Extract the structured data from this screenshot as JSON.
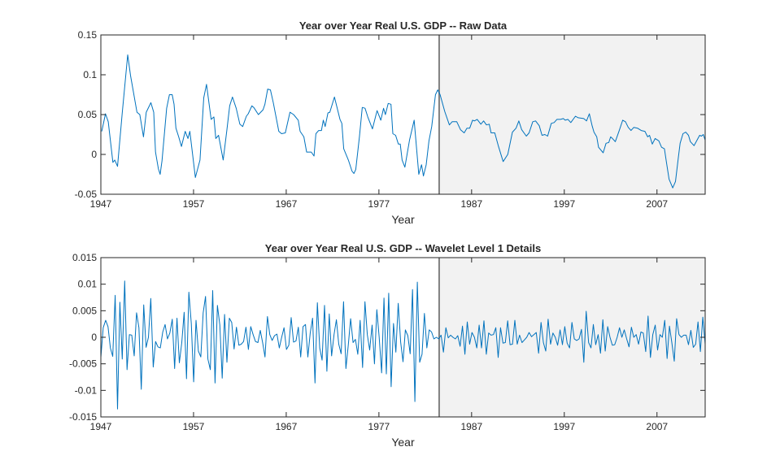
{
  "chart_data": [
    {
      "type": "line",
      "title": "Year over Year Real U.S. GDP -- Raw Data",
      "xlabel": "Year",
      "ylabel": "",
      "xlim": [
        1947,
        2012.2
      ],
      "ylim": [
        -0.05,
        0.15
      ],
      "xticks": [
        1947,
        1957,
        1967,
        1977,
        1987,
        1997,
        2007
      ],
      "xtick_labels": [
        "1947",
        "1957",
        "1967",
        "1977",
        "1987",
        "1997",
        "2007"
      ],
      "yticks": [
        -0.05,
        0,
        0.05,
        0.1,
        0.15
      ],
      "ytick_labels": [
        "-0.05",
        "0",
        "0.05",
        "0.1",
        "0.15"
      ],
      "grid": false,
      "highlight_range": [
        1983.5,
        2012.2
      ],
      "colors": {
        "line": "#0072bd",
        "highlight_fill": "#f2f2f2",
        "highlight_edge": "#808080"
      },
      "points": [
        [
          1947.1,
          0.029
        ],
        [
          1947.5,
          0.051
        ],
        [
          1947.8,
          0.041
        ],
        [
          1948.3,
          -0.01
        ],
        [
          1948.5,
          -0.007
        ],
        [
          1948.8,
          -0.015
        ],
        [
          1949.3,
          0.051
        ],
        [
          1949.9,
          0.125
        ],
        [
          1950.2,
          0.099
        ],
        [
          1950.9,
          0.053
        ],
        [
          1951.2,
          0.05
        ],
        [
          1951.6,
          0.022
        ],
        [
          1951.9,
          0.053
        ],
        [
          1952.4,
          0.065
        ],
        [
          1952.7,
          0.053
        ],
        [
          1952.9,
          0.003
        ],
        [
          1953.2,
          -0.018
        ],
        [
          1953.4,
          -0.025
        ],
        [
          1953.6,
          -0.008
        ],
        [
          1954.1,
          0.058
        ],
        [
          1954.4,
          0.075
        ],
        [
          1954.7,
          0.075
        ],
        [
          1954.9,
          0.063
        ],
        [
          1955.1,
          0.033
        ],
        [
          1955.4,
          0.022
        ],
        [
          1955.7,
          0.01
        ],
        [
          1956.1,
          0.029
        ],
        [
          1956.4,
          0.02
        ],
        [
          1956.6,
          0.029
        ],
        [
          1957.2,
          -0.029
        ],
        [
          1957.7,
          -0.007
        ],
        [
          1958.1,
          0.071
        ],
        [
          1958.4,
          0.088
        ],
        [
          1958.9,
          0.044
        ],
        [
          1959.2,
          0.047
        ],
        [
          1959.4,
          0.02
        ],
        [
          1959.7,
          0.024
        ],
        [
          1960.2,
          -0.007
        ],
        [
          1960.6,
          0.031
        ],
        [
          1960.9,
          0.061
        ],
        [
          1961.2,
          0.072
        ],
        [
          1961.6,
          0.058
        ],
        [
          1962.0,
          0.038
        ],
        [
          1962.3,
          0.035
        ],
        [
          1962.7,
          0.048
        ],
        [
          1962.9,
          0.051
        ],
        [
          1963.3,
          0.061
        ],
        [
          1963.5,
          0.059
        ],
        [
          1964.0,
          0.05
        ],
        [
          1964.5,
          0.056
        ],
        [
          1964.7,
          0.063
        ],
        [
          1965.0,
          0.082
        ],
        [
          1965.3,
          0.081
        ],
        [
          1965.6,
          0.065
        ],
        [
          1966.2,
          0.029
        ],
        [
          1966.5,
          0.026
        ],
        [
          1966.9,
          0.027
        ],
        [
          1967.4,
          0.053
        ],
        [
          1967.8,
          0.05
        ],
        [
          1968.3,
          0.043
        ],
        [
          1968.5,
          0.029
        ],
        [
          1968.9,
          0.022
        ],
        [
          1969.2,
          0.003
        ],
        [
          1969.7,
          0.003
        ],
        [
          1970.0,
          -0.002
        ],
        [
          1970.2,
          0.026
        ],
        [
          1970.5,
          0.03
        ],
        [
          1970.8,
          0.03
        ],
        [
          1971.0,
          0.043
        ],
        [
          1971.2,
          0.035
        ],
        [
          1971.5,
          0.052
        ],
        [
          1971.7,
          0.053
        ],
        [
          1972.2,
          0.072
        ],
        [
          1972.8,
          0.044
        ],
        [
          1973.0,
          0.039
        ],
        [
          1973.2,
          0.007
        ],
        [
          1973.7,
          -0.007
        ],
        [
          1974.1,
          -0.021
        ],
        [
          1974.3,
          -0.024
        ],
        [
          1974.5,
          -0.019
        ],
        [
          1974.9,
          0.022
        ],
        [
          1975.2,
          0.059
        ],
        [
          1975.5,
          0.058
        ],
        [
          1975.8,
          0.047
        ],
        [
          1976.3,
          0.032
        ],
        [
          1976.8,
          0.055
        ],
        [
          1977.2,
          0.043
        ],
        [
          1977.5,
          0.058
        ],
        [
          1977.7,
          0.05
        ],
        [
          1978.0,
          0.064
        ],
        [
          1978.3,
          0.063
        ],
        [
          1978.5,
          0.026
        ],
        [
          1978.8,
          0.024
        ],
        [
          1979.1,
          0.013
        ],
        [
          1979.3,
          0.013
        ],
        [
          1979.5,
          -0.007
        ],
        [
          1979.8,
          -0.016
        ],
        [
          1980.3,
          0.018
        ],
        [
          1980.8,
          0.043
        ],
        [
          1981.3,
          -0.025
        ],
        [
          1981.6,
          -0.013
        ],
        [
          1981.8,
          -0.027
        ],
        [
          1982.1,
          -0.013
        ],
        [
          1982.4,
          0.017
        ],
        [
          1982.7,
          0.035
        ],
        [
          1983.1,
          0.075
        ],
        [
          1983.35,
          0.081
        ],
        [
          1983.6,
          0.075
        ],
        [
          1984.1,
          0.054
        ],
        [
          1984.6,
          0.037
        ],
        [
          1984.9,
          0.041
        ],
        [
          1985.4,
          0.041
        ],
        [
          1985.8,
          0.031
        ],
        [
          1986.2,
          0.027
        ],
        [
          1986.5,
          0.033
        ],
        [
          1986.8,
          0.033
        ],
        [
          1987.1,
          0.043
        ],
        [
          1987.3,
          0.042
        ],
        [
          1987.6,
          0.044
        ],
        [
          1988.0,
          0.038
        ],
        [
          1988.3,
          0.042
        ],
        [
          1988.6,
          0.037
        ],
        [
          1988.9,
          0.038
        ],
        [
          1989.1,
          0.027
        ],
        [
          1989.5,
          0.027
        ],
        [
          1989.9,
          0.01
        ],
        [
          1990.4,
          -0.009
        ],
        [
          1990.9,
          0.0
        ],
        [
          1991.4,
          0.028
        ],
        [
          1991.8,
          0.033
        ],
        [
          1992.1,
          0.042
        ],
        [
          1992.4,
          0.031
        ],
        [
          1992.9,
          0.023
        ],
        [
          1993.2,
          0.027
        ],
        [
          1993.6,
          0.041
        ],
        [
          1993.9,
          0.042
        ],
        [
          1994.3,
          0.036
        ],
        [
          1994.6,
          0.024
        ],
        [
          1994.9,
          0.025
        ],
        [
          1995.2,
          0.023
        ],
        [
          1995.6,
          0.039
        ],
        [
          1995.9,
          0.04
        ],
        [
          1996.2,
          0.044
        ],
        [
          1996.6,
          0.044
        ],
        [
          1996.9,
          0.045
        ],
        [
          1997.1,
          0.043
        ],
        [
          1997.4,
          0.044
        ],
        [
          1997.7,
          0.04
        ],
        [
          1998.2,
          0.048
        ],
        [
          1998.5,
          0.046
        ],
        [
          1999.1,
          0.045
        ],
        [
          1999.4,
          0.042
        ],
        [
          1999.7,
          0.051
        ],
        [
          2000.0,
          0.036
        ],
        [
          2000.2,
          0.028
        ],
        [
          2000.5,
          0.022
        ],
        [
          2000.7,
          0.009
        ],
        [
          2001.2,
          0.002
        ],
        [
          2001.5,
          0.014
        ],
        [
          2001.8,
          0.015
        ],
        [
          2002.0,
          0.022
        ],
        [
          2002.2,
          0.02
        ],
        [
          2002.5,
          0.016
        ],
        [
          2002.9,
          0.029
        ],
        [
          2003.3,
          0.043
        ],
        [
          2003.6,
          0.041
        ],
        [
          2003.9,
          0.034
        ],
        [
          2004.2,
          0.03
        ],
        [
          2004.5,
          0.034
        ],
        [
          2004.9,
          0.033
        ],
        [
          2005.3,
          0.03
        ],
        [
          2005.7,
          0.029
        ],
        [
          2006.0,
          0.022
        ],
        [
          2006.2,
          0.024
        ],
        [
          2006.5,
          0.013
        ],
        [
          2006.8,
          0.02
        ],
        [
          2007.2,
          0.017
        ],
        [
          2007.5,
          0.009
        ],
        [
          2007.8,
          0.007
        ],
        [
          2008.0,
          -0.008
        ],
        [
          2008.3,
          -0.031
        ],
        [
          2008.7,
          -0.042
        ],
        [
          2009.0,
          -0.034
        ],
        [
          2009.3,
          -0.004
        ],
        [
          2009.5,
          0.014
        ],
        [
          2009.8,
          0.026
        ],
        [
          2010.1,
          0.028
        ],
        [
          2010.4,
          0.024
        ],
        [
          2010.6,
          0.016
        ],
        [
          2011.0,
          0.011
        ],
        [
          2011.6,
          0.024
        ],
        [
          2011.8,
          0.023
        ],
        [
          2012.0,
          0.025
        ],
        [
          2012.2,
          0.018
        ]
      ]
    },
    {
      "type": "line",
      "title": "Year over Year Real U.S. GDP -- Wavelet Level 1 Details",
      "xlabel": "Year",
      "ylabel": "",
      "xlim": [
        1947,
        2012.2
      ],
      "ylim": [
        -0.015,
        0.015
      ],
      "xticks": [
        1947,
        1957,
        1967,
        1977,
        1987,
        1997,
        2007
      ],
      "xtick_labels": [
        "1947",
        "1957",
        "1967",
        "1977",
        "1987",
        "1997",
        "2007"
      ],
      "yticks": [
        -0.015,
        -0.01,
        -0.005,
        0,
        0.005,
        0.01,
        0.015
      ],
      "ytick_labels": [
        "-0.015",
        "-0.01",
        "-0.005",
        "0",
        "0.005",
        "0.01",
        "0.015"
      ],
      "grid": false,
      "highlight_range": [
        1983.5,
        2012.2
      ],
      "colors": {
        "line": "#0072bd",
        "highlight_fill": "#f2f2f2",
        "highlight_edge": "#808080"
      },
      "values": [
        -0.0038,
        0.0018,
        0.0032,
        0.002,
        -0.002,
        -0.0036,
        0.0079,
        -0.0135,
        0.0066,
        -0.0041,
        0.0106,
        -0.0061,
        0.0005,
        0.0004,
        -0.0035,
        0.0046,
        0.0018,
        -0.0098,
        0.0061,
        -0.0019,
        0,
        0.0073,
        -0.0056,
        -0.0008,
        -0.0018,
        -0.002,
        0.001,
        0.0024,
        -0.0003,
        0.0008,
        0.0034,
        -0.0059,
        0.0036,
        -0.0048,
        -0.001,
        0.0047,
        -0.0078,
        0.0085,
        0.0026,
        -0.0084,
        0.0032,
        -0.0026,
        -0.0037,
        0.0046,
        0.0077,
        -0.0041,
        -0.0061,
        0.0088,
        -0.0086,
        0.006,
        0.0023,
        -0.0077,
        0.0043,
        -0.0047,
        0.0036,
        0.0028,
        -0.0022,
        0.0019,
        -0.0015,
        -0.0013,
        -0.0008,
        0.0019,
        -0.0023,
        0.002,
        0.0005,
        -0.0008,
        -0.001,
        0.0013,
        -0.001,
        -0.0037,
        0.0039,
        0.0005,
        -0.0006,
        0.0003,
        0.0006,
        -0.002,
        0,
        0.0018,
        -0.0023,
        -0.0015,
        0.0037,
        -0.0009,
        -0.0007,
        0.0019,
        -0.0037,
        0.002,
        0.0024,
        -0.0037,
        0.0008,
        0.0036,
        -0.0086,
        0.0065,
        -0.002,
        -0.0043,
        0.006,
        -0.0064,
        0.0044,
        -0.0035,
        0.0005,
        0.0033,
        -0.0013,
        -0.0031,
        0.0067,
        -0.0059,
        -0.0015,
        0.0035,
        -0.001,
        -0.0004,
        -0.0032,
        0.0032,
        -0.0057,
        0.0067,
        0.0005,
        -0.0024,
        0.0023,
        -0.005,
        0.0052,
        0,
        -0.0067,
        0.0074,
        -0.0069,
        0.0083,
        -0.0093,
        0.0026,
        -0.0028,
        0.0064,
        -0.0009,
        -0.0046,
        0.0014,
        0.0003,
        -0.0031,
        0.009,
        -0.0121,
        0.0104,
        -0.0047,
        -0.0032,
        0.0045,
        -0.002,
        0.0014,
        0.001,
        -0.0003,
        0,
        -0.0003,
        0.0004,
        -0.0028,
        0.0018,
        -0.0001,
        0.0004,
        0,
        -0.0003,
        0.0003,
        -0.0017,
        0.0021,
        -0.0032,
        0.0029,
        -0.0013,
        0.0009,
        0,
        -0.002,
        0.0023,
        -0.002,
        0.0031,
        -0.0032,
        0.0008,
        0.0004,
        0.0005,
        0.0018,
        -0.0038,
        0.0018,
        -0.0011,
        -0.001,
        0.0031,
        -0.0014,
        -0.0013,
        0.0032,
        -0.0013,
        0.0004,
        -0.001,
        -0.0005,
        0,
        0.0009,
        0.0001,
        0.0005,
        0.0009,
        -0.003,
        0.0028,
        -0.001,
        -0.0026,
        0.0034,
        -0.0013,
        0.0008,
        0,
        -0.0015,
        0.0014,
        -0.0014,
        0.002,
        -0.0011,
        -0.002,
        0.0028,
        -0.0003,
        -0.0006,
        -0.0003,
        0.0015,
        -0.0047,
        0.0049,
        -0.001,
        -0.002,
        0.0024,
        -0.0014,
        0.0005,
        -0.003,
        0.0033,
        -0.0026,
        0.002,
        0,
        -0.0015,
        -0.0014,
        0,
        0.0018,
        0,
        0.0014,
        -0.0003,
        -0.0018,
        0.0019,
        0,
        0.0005,
        -0.0013,
        0.001,
        0.0008,
        -0.0027,
        0.004,
        -0.0038,
        0.0005,
        0.0023,
        -0.0024,
        0.0005,
        0,
        0.0032,
        -0.004,
        0.0021,
        -0.001,
        -0.0045,
        0.0035,
        0.0005,
        0,
        0.0004,
        0.0004,
        -0.0014,
        0.0013,
        -0.0019,
        -0.0013,
        0.0029,
        -0.0027,
        0.0038,
        -0.0013
      ]
    }
  ]
}
